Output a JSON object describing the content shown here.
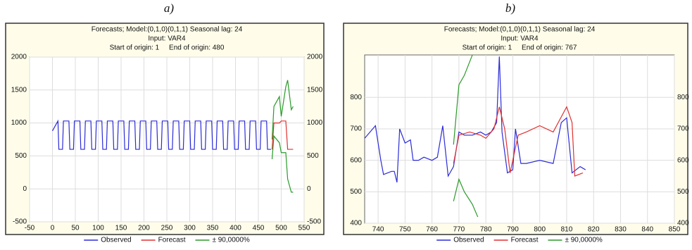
{
  "chart_data": [
    {
      "type": "line",
      "label": "a)",
      "title_lines": [
        "Forecasts; Model:(0,1,0)(0,1,1) Seasonal lag: 24",
        "Input: VAR4",
        "Start of origin: 1     End of origin: 480"
      ],
      "xlim": [
        -50,
        550
      ],
      "xticks": [
        -50,
        0,
        50,
        100,
        150,
        200,
        250,
        300,
        350,
        400,
        450,
        500,
        550
      ],
      "ylim": [
        -500,
        2000
      ],
      "yticks": [
        -500,
        0,
        500,
        1000,
        1500,
        2000
      ],
      "grid": true,
      "series": [
        {
          "name": "Observed",
          "color": "#2b2bd8",
          "x": [
            0,
            12,
            14,
            22,
            24,
            36,
            38,
            46,
            48,
            60,
            62,
            70,
            72,
            84,
            86,
            94,
            96,
            108,
            110,
            118,
            120,
            132,
            134,
            142,
            144,
            156,
            158,
            166,
            168,
            180,
            182,
            190,
            192,
            204,
            206,
            214,
            216,
            228,
            230,
            238,
            240,
            252,
            254,
            262,
            264,
            276,
            278,
            286,
            288,
            300,
            302,
            310,
            312,
            324,
            326,
            334,
            336,
            348,
            350,
            358,
            360,
            372,
            374,
            382,
            384,
            396,
            398,
            406,
            408,
            420,
            422,
            430,
            432,
            444,
            446,
            454,
            456,
            468,
            470,
            478
          ],
          "values": [
            880,
            1030,
            600,
            600,
            1030,
            1030,
            600,
            600,
            1030,
            1030,
            600,
            600,
            1030,
            1030,
            600,
            600,
            1030,
            1030,
            600,
            600,
            1030,
            1030,
            600,
            600,
            1030,
            1030,
            600,
            600,
            1030,
            1030,
            600,
            600,
            1030,
            1030,
            600,
            600,
            1030,
            1030,
            600,
            600,
            1030,
            1030,
            600,
            600,
            1030,
            1030,
            600,
            600,
            1030,
            1030,
            600,
            600,
            1030,
            1030,
            600,
            600,
            1030,
            1030,
            600,
            600,
            1030,
            1030,
            600,
            600,
            1030,
            1030,
            600,
            600,
            1030,
            1030,
            600,
            600,
            1030,
            1030,
            600,
            600,
            1030,
            1030,
            600,
            600
          ]
        },
        {
          "name": "Forecast",
          "color": "#e03030",
          "x": [
            480,
            484,
            496,
            500,
            510,
            514,
            522,
            526
          ],
          "values": [
            600,
            1000,
            1000,
            1030,
            1030,
            600,
            600,
            600
          ]
        },
        {
          "name": "± 90,0000%",
          "color": "#2a9a2a",
          "x": [
            480,
            484,
            496,
            500,
            510,
            514,
            522,
            526
          ],
          "values": [
            750,
            1250,
            1400,
            1100,
            1550,
            1650,
            1200,
            1250
          ],
          "lower": [
            450,
            800,
            700,
            550,
            550,
            150,
            -50,
            -50
          ]
        }
      ]
    },
    {
      "type": "line",
      "label": "b)",
      "title_lines": [
        "Forecasts; Model:(0,1,0)(0,1,1) Seasonal lag: 24",
        "Input: VAR4",
        "Start of origin: 1     End of origin: 767"
      ],
      "xlim": [
        735,
        850
      ],
      "xticks": [
        740,
        750,
        760,
        770,
        780,
        790,
        800,
        810,
        820,
        830,
        840,
        850
      ],
      "ylim": [
        400,
        935
      ],
      "yticks": [
        400,
        500,
        600,
        700,
        800
      ],
      "grid": true,
      "series": [
        {
          "name": "Observed",
          "color": "#2b2bd8",
          "x": [
            735,
            738,
            739,
            741,
            742,
            745,
            746,
            747,
            748,
            750,
            752,
            753,
            755,
            757,
            760,
            762,
            764,
            766,
            768,
            770,
            772,
            775,
            778,
            780,
            782,
            784,
            785,
            786,
            788,
            790,
            791,
            793,
            795,
            800,
            805,
            808,
            810,
            812,
            815,
            817
          ],
          "values": [
            670,
            700,
            710,
            600,
            555,
            565,
            565,
            530,
            700,
            655,
            665,
            600,
            600,
            610,
            600,
            610,
            710,
            550,
            580,
            690,
            680,
            680,
            690,
            680,
            690,
            720,
            930,
            690,
            560,
            570,
            700,
            590,
            590,
            600,
            590,
            720,
            735,
            560,
            580,
            570
          ]
        },
        {
          "name": "Forecast",
          "color": "#e03030",
          "x": [
            768,
            770,
            774,
            778,
            780,
            783,
            785,
            787,
            789,
            792,
            795,
            800,
            805,
            810,
            812,
            813,
            816
          ],
          "values": [
            590,
            680,
            690,
            680,
            670,
            700,
            770,
            700,
            560,
            680,
            690,
            710,
            690,
            770,
            720,
            550,
            560
          ]
        },
        {
          "name": "± 90,0000%",
          "color": "#2a9a2a",
          "x": [
            768,
            770,
            772,
            775,
            777
          ],
          "values": [
            650,
            840,
            870,
            935,
            1000
          ],
          "lower": [
            470,
            540,
            500,
            460,
            420
          ]
        }
      ]
    }
  ]
}
